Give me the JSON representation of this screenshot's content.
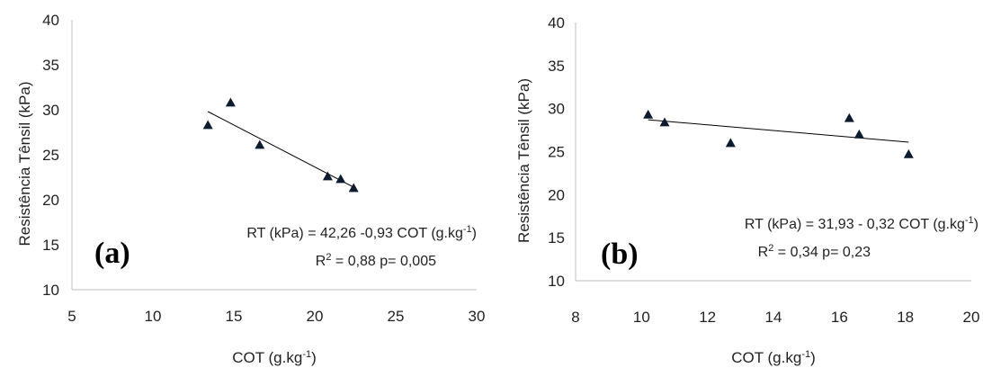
{
  "chart_data": [
    {
      "type": "scatter",
      "panel_label": "(a)",
      "xlabel": "COT (g.kg",
      "xlabel_sup": "-1",
      "xlabel_end": ")",
      "ylabel": "Resistência Tênsil (kPa)",
      "xlim": [
        5,
        30
      ],
      "ylim": [
        10,
        40
      ],
      "xticks": [
        5,
        10,
        15,
        20,
        25,
        30
      ],
      "yticks": [
        10,
        15,
        20,
        25,
        30,
        35,
        40
      ],
      "grid": false,
      "marker": "triangle",
      "points": [
        {
          "x": 13.4,
          "y": 28.3
        },
        {
          "x": 14.8,
          "y": 30.8
        },
        {
          "x": 16.6,
          "y": 26.1
        },
        {
          "x": 20.8,
          "y": 22.6
        },
        {
          "x": 21.6,
          "y": 22.3
        },
        {
          "x": 22.4,
          "y": 21.3
        }
      ],
      "trendline": {
        "x": [
          13.4,
          22.4
        ],
        "y": [
          29.8,
          21.4
        ]
      },
      "equation": "RT (kPa) = 42,26 -0,93 COT (g.kg",
      "equation_sup": "-1",
      "equation_end": ")",
      "stats_r": "R",
      "stats_sup": "2",
      "stats_rest": " = 0,88  p= 0,005"
    },
    {
      "type": "scatter",
      "panel_label": "(b)",
      "xlabel": "COT (g.kg",
      "xlabel_sup": "-1",
      "xlabel_end": ")",
      "ylabel": "Resistência Tênsil (kPa)",
      "xlim": [
        8,
        20
      ],
      "ylim": [
        10,
        40
      ],
      "xticks": [
        8,
        10,
        12,
        14,
        16,
        18,
        20
      ],
      "yticks": [
        10,
        15,
        20,
        25,
        30,
        35,
        40
      ],
      "grid": false,
      "marker": "triangle",
      "points": [
        {
          "x": 10.2,
          "y": 29.3
        },
        {
          "x": 10.7,
          "y": 28.4
        },
        {
          "x": 12.7,
          "y": 26.0
        },
        {
          "x": 16.3,
          "y": 28.9
        },
        {
          "x": 16.6,
          "y": 27.0
        },
        {
          "x": 18.1,
          "y": 24.7
        }
      ],
      "trendline": {
        "x": [
          10.2,
          18.1
        ],
        "y": [
          28.7,
          26.1
        ]
      },
      "equation": "RT (kPa) = 31,93 - 0,32 COT (g.kg",
      "equation_sup": "-1",
      "equation_end": ")",
      "stats_r": "R",
      "stats_sup": "2",
      "stats_rest": " = 0,34   p= 0,23"
    }
  ]
}
